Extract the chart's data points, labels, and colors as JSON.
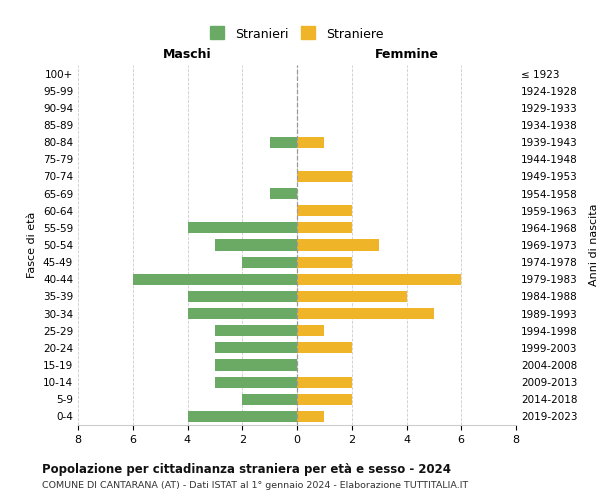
{
  "age_groups": [
    "100+",
    "95-99",
    "90-94",
    "85-89",
    "80-84",
    "75-79",
    "70-74",
    "65-69",
    "60-64",
    "55-59",
    "50-54",
    "45-49",
    "40-44",
    "35-39",
    "30-34",
    "25-29",
    "20-24",
    "15-19",
    "10-14",
    "5-9",
    "0-4"
  ],
  "birth_years": [
    "≤ 1923",
    "1924-1928",
    "1929-1933",
    "1934-1938",
    "1939-1943",
    "1944-1948",
    "1949-1953",
    "1954-1958",
    "1959-1963",
    "1964-1968",
    "1969-1973",
    "1974-1978",
    "1979-1983",
    "1984-1988",
    "1989-1993",
    "1994-1998",
    "1999-2003",
    "2004-2008",
    "2009-2013",
    "2014-2018",
    "2019-2023"
  ],
  "males": [
    0,
    0,
    0,
    0,
    1,
    0,
    0,
    1,
    0,
    4,
    3,
    2,
    6,
    4,
    4,
    3,
    3,
    3,
    3,
    2,
    4
  ],
  "females": [
    0,
    0,
    0,
    0,
    1,
    0,
    2,
    0,
    2,
    2,
    3,
    2,
    6,
    4,
    5,
    1,
    2,
    0,
    2,
    2,
    1
  ],
  "male_color": "#6aaa64",
  "female_color": "#f0b429",
  "grid_color": "#cccccc",
  "center_line_color": "#999999",
  "title": "Popolazione per cittadinanza straniera per età e sesso - 2024",
  "subtitle": "COMUNE DI CANTARANA (AT) - Dati ISTAT al 1° gennaio 2024 - Elaborazione TUTTITALIA.IT",
  "xlabel_left": "Maschi",
  "xlabel_right": "Femmine",
  "ylabel_left": "Fasce di età",
  "ylabel_right": "Anni di nascita",
  "legend_male": "Stranieri",
  "legend_female": "Straniere",
  "xlim": 8,
  "background_color": "#ffffff"
}
